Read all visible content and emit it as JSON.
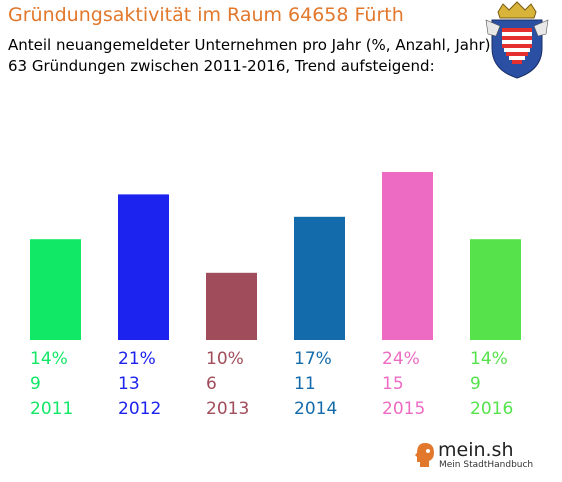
{
  "header": {
    "title": "Gründungsaktivität im Raum 64658 Fürth",
    "subtitle_line1": "Anteil neuangemeldeter Unternehmen pro Jahr (%, Anzahl, Jahr)",
    "subtitle_line2": "63 Gründungen zwischen 2011-2016, Trend aufsteigend:"
  },
  "crest": {
    "icon": "hesse-coat-of-arms-icon"
  },
  "brand": {
    "name": "mein.sh",
    "tagline": "Mein StadtHandbuch",
    "icon": "person-head-icon"
  },
  "chart_data": {
    "type": "bar",
    "title": "Gründungsaktivität im Raum 64658 Fürth",
    "categories": [
      "2011",
      "2012",
      "2013",
      "2014",
      "2015",
      "2016"
    ],
    "percent_labels": [
      "14%",
      "21%",
      "10%",
      "17%",
      "24%",
      "14%"
    ],
    "count_labels": [
      "9",
      "13",
      "6",
      "11",
      "15",
      "9"
    ],
    "values": [
      9,
      13,
      6,
      11,
      15,
      9
    ],
    "ylim": [
      0,
      16
    ],
    "colors": [
      "#11e866",
      "#1c23ee",
      "#a14c5a",
      "#146bab",
      "#ed6bc3",
      "#55e24b"
    ],
    "grid": false,
    "legend": "none"
  }
}
